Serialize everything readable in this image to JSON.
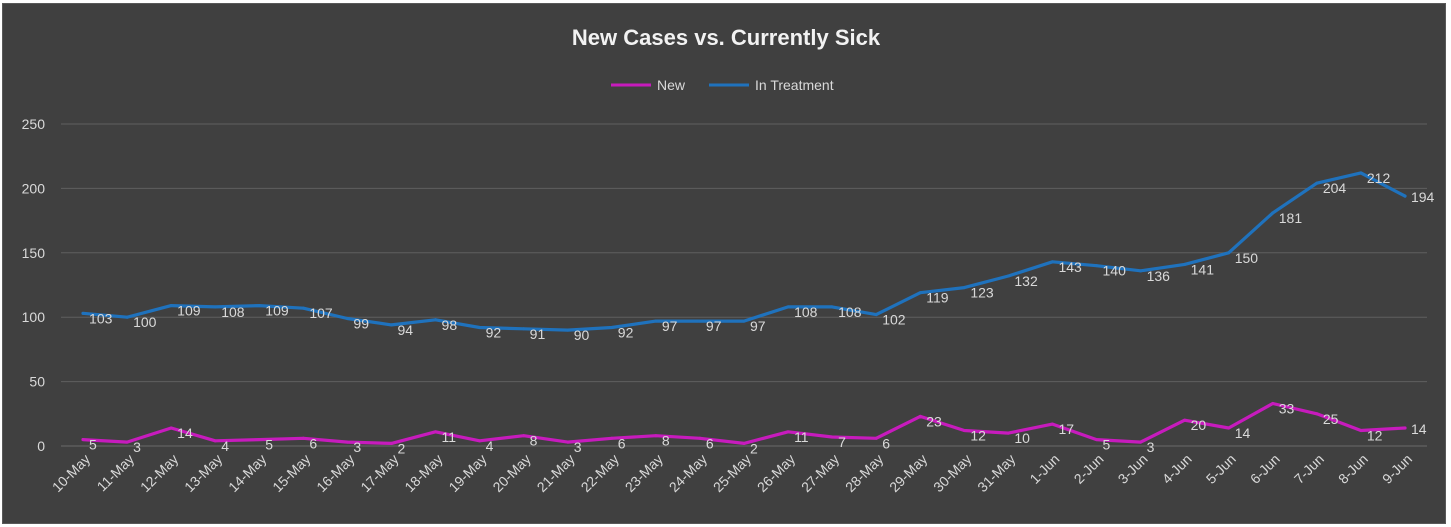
{
  "chart_data": {
    "type": "line",
    "title": "New Cases vs. Currently Sick",
    "xlabel": "",
    "ylabel": "",
    "ylim": [
      0,
      250
    ],
    "yticks": [
      0,
      50,
      100,
      150,
      200,
      250
    ],
    "grid": true,
    "legend_position": "top",
    "categories": [
      "10-May",
      "11-May",
      "12-May",
      "13-May",
      "14-May",
      "15-May",
      "16-May",
      "17-May",
      "18-May",
      "19-May",
      "20-May",
      "21-May",
      "22-May",
      "23-May",
      "24-May",
      "25-May",
      "26-May",
      "27-May",
      "28-May",
      "29-May",
      "30-May",
      "31-May",
      "1-Jun",
      "2-Jun",
      "3-Jun",
      "4-Jun",
      "5-Jun",
      "6-Jun",
      "7-Jun",
      "8-Jun",
      "9-Jun"
    ],
    "series": [
      {
        "name": "New",
        "color": "#c71bbd",
        "values": [
          5,
          3,
          14,
          4,
          5,
          6,
          3,
          2,
          11,
          4,
          8,
          3,
          6,
          8,
          6,
          2,
          11,
          7,
          6,
          23,
          12,
          10,
          17,
          5,
          3,
          20,
          14,
          33,
          25,
          12,
          14
        ],
        "data_labels": [
          "5",
          "3",
          "14",
          "4",
          "5",
          "6",
          "3",
          "2",
          "11",
          "4",
          "8",
          "3",
          "6",
          "8",
          "6",
          "2",
          "11",
          "7",
          "6",
          "23",
          "12",
          "10",
          "17",
          "5",
          "3",
          "20",
          "14",
          "33",
          "25",
          "12",
          "14"
        ]
      },
      {
        "name": "In Treatment",
        "color": "#1f72bd",
        "values": [
          103,
          100,
          109,
          108,
          109,
          107,
          99,
          94,
          98,
          92,
          91,
          90,
          92,
          97,
          97,
          97,
          108,
          108,
          102,
          119,
          123,
          132,
          143,
          140,
          136,
          141,
          150,
          181,
          204,
          212,
          194
        ],
        "data_labels": [
          "103",
          "100",
          "109",
          "108",
          "109",
          "107",
          "99",
          "94",
          "98",
          "92",
          "91",
          "90",
          "92",
          "97",
          "97",
          "97",
          "108",
          "108",
          "102",
          "119",
          "123",
          "132",
          "143",
          "140",
          "136",
          "141",
          "150",
          "181",
          "204",
          "212",
          "194"
        ]
      }
    ]
  }
}
